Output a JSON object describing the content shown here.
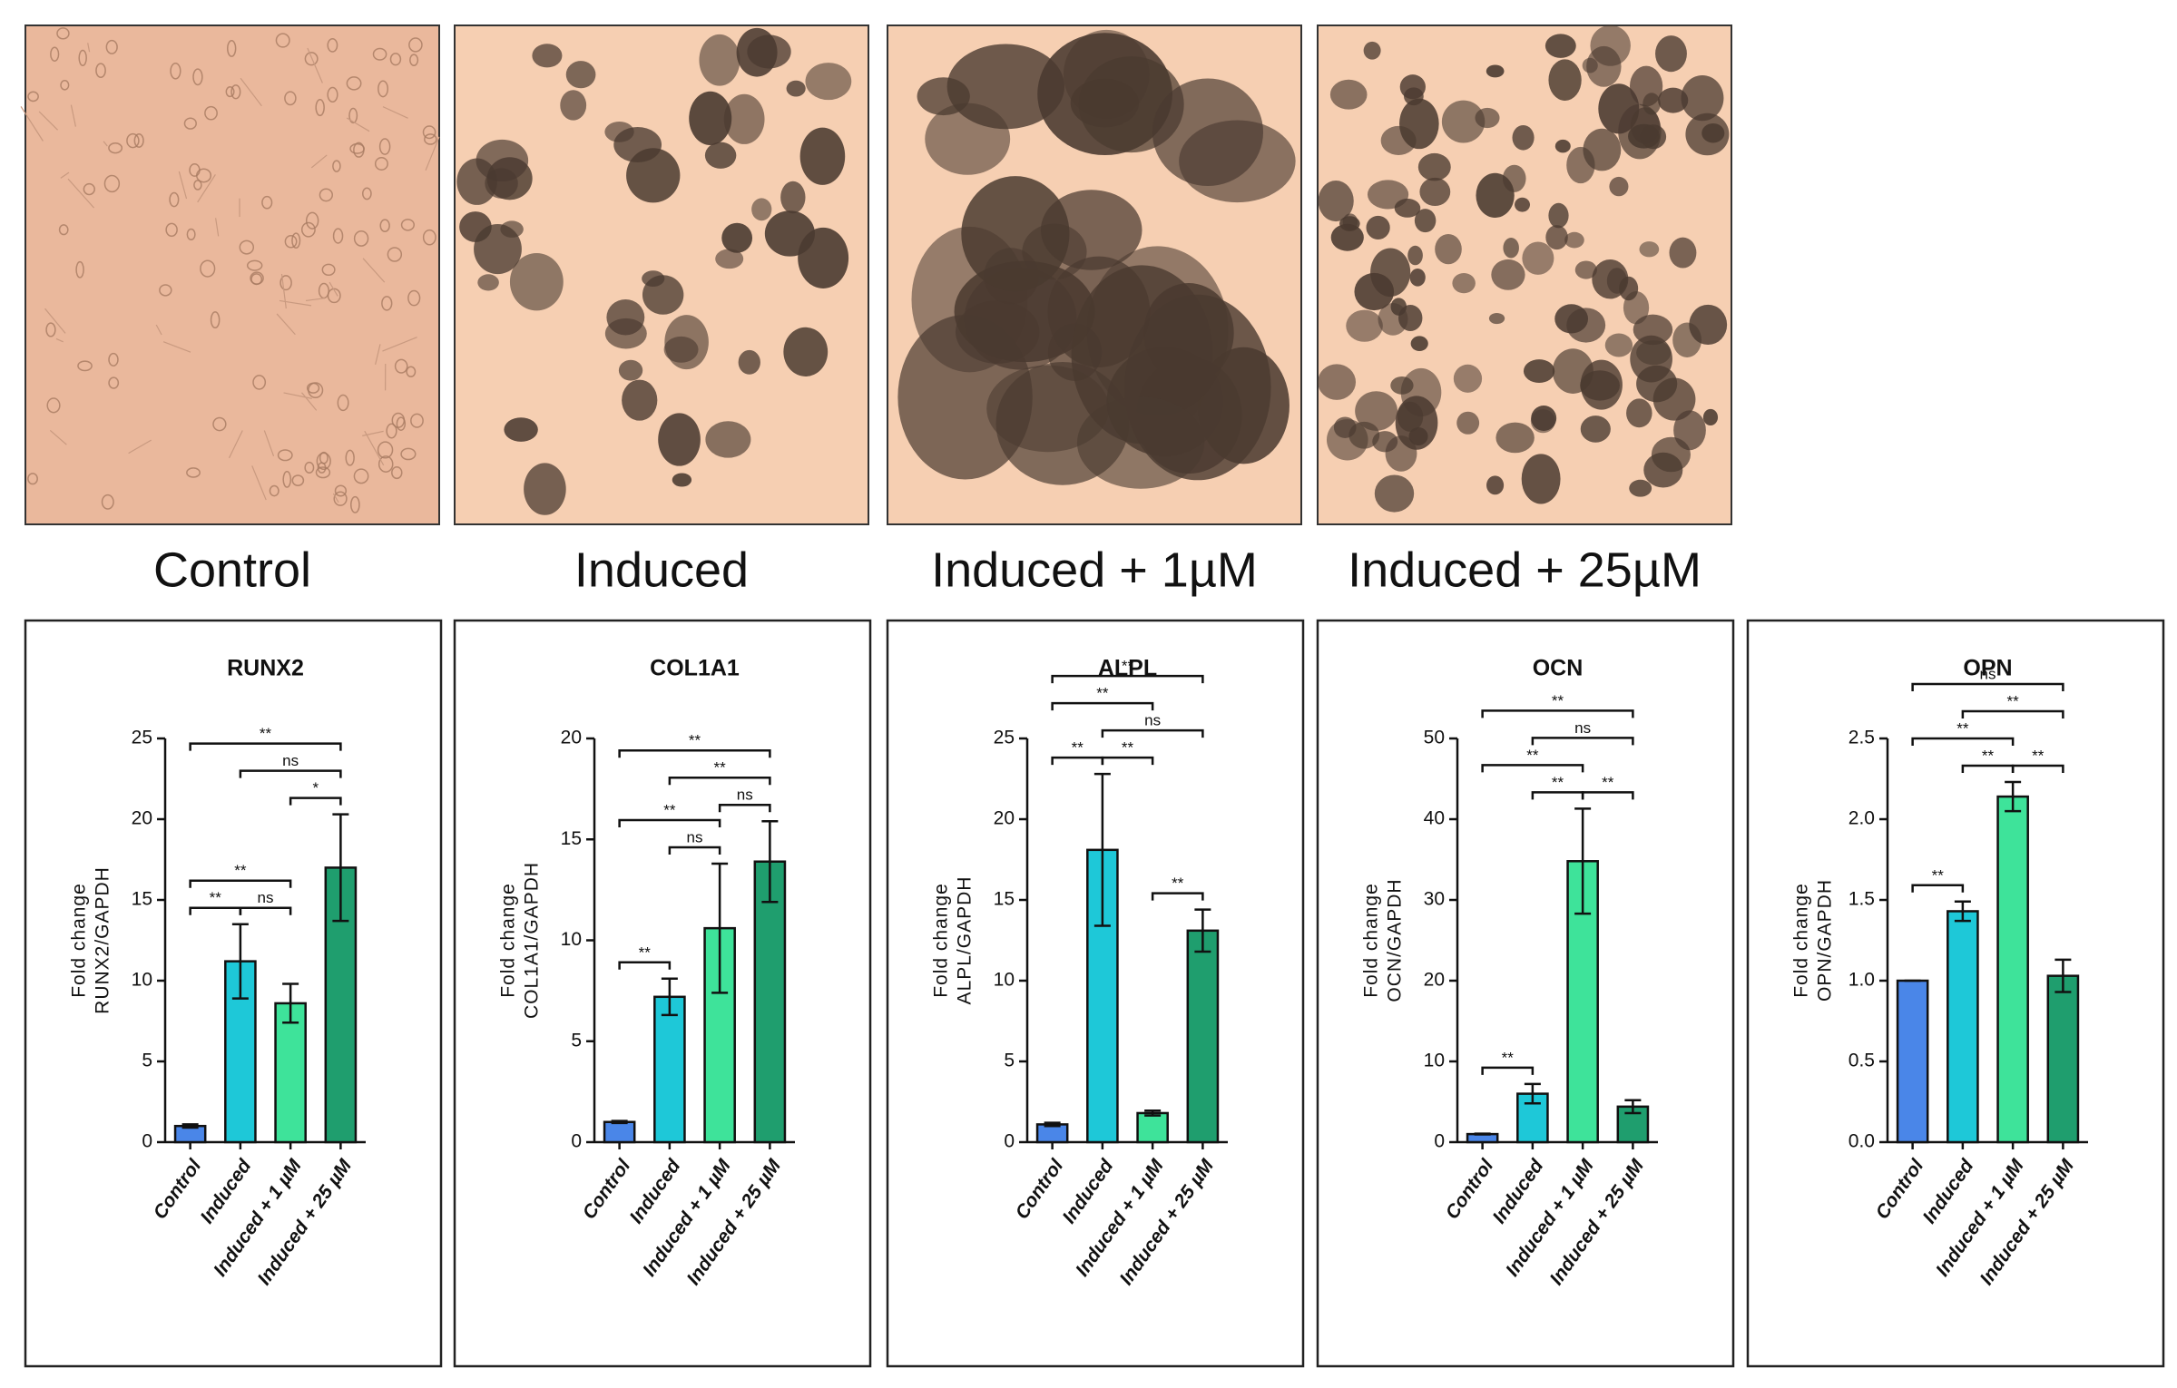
{
  "panels": [
    "Control",
    "Induced",
    "Induced + 1µM",
    "Induced + 25µM"
  ],
  "chart_data": [
    {
      "type": "bar",
      "title": "RUNX2",
      "ylabel": [
        "Fold change",
        "RUNX2/GAPDH"
      ],
      "categories": [
        "Control",
        "Induced",
        "Induced + 1 µM",
        "Induced + 25 µM"
      ],
      "colors": [
        "#4a86e8",
        "#1ec8d8",
        "#3ee39a",
        "#1f9e6e"
      ],
      "values": [
        1,
        11.2,
        8.6,
        17.0
      ],
      "errors": [
        0.1,
        2.3,
        1.2,
        3.3
      ],
      "ylim": [
        0,
        25
      ],
      "yticks": [
        0,
        5,
        10,
        15,
        20,
        25
      ],
      "brackets": [
        {
          "from": 0,
          "to": 1,
          "label": "**"
        },
        {
          "from": 1,
          "to": 2,
          "label": "ns"
        },
        {
          "from": 0,
          "to": 2,
          "label": "**"
        },
        {
          "from": 2,
          "to": 3,
          "label": "*"
        },
        {
          "from": 1,
          "to": 3,
          "label": "ns"
        },
        {
          "from": 0,
          "to": 3,
          "label": "**"
        }
      ]
    },
    {
      "type": "bar",
      "title": "COL1A1",
      "ylabel": [
        "Fold change",
        "COL1A1/GAPDH"
      ],
      "categories": [
        "Control",
        "Induced",
        "Induced + 1 µM",
        "Induced + 25 µM"
      ],
      "colors": [
        "#4a86e8",
        "#1ec8d8",
        "#3ee39a",
        "#1f9e6e"
      ],
      "values": [
        1,
        7.2,
        10.6,
        13.9
      ],
      "errors": [
        0.05,
        0.9,
        3.2,
        2.0
      ],
      "ylim": [
        0,
        20
      ],
      "yticks": [
        0,
        5,
        10,
        15,
        20
      ],
      "brackets": [
        {
          "from": 0,
          "to": 1,
          "label": "**"
        },
        {
          "from": 1,
          "to": 2,
          "label": "ns"
        },
        {
          "from": 0,
          "to": 2,
          "label": "**"
        },
        {
          "from": 2,
          "to": 3,
          "label": "ns"
        },
        {
          "from": 1,
          "to": 3,
          "label": "**"
        },
        {
          "from": 0,
          "to": 3,
          "label": "**"
        }
      ]
    },
    {
      "type": "bar",
      "title": "ALPL",
      "ylabel": [
        "Fold change",
        "ALPL/GAPDH"
      ],
      "categories": [
        "Control",
        "Induced",
        "Induced + 1 µM",
        "Induced + 25 µM"
      ],
      "colors": [
        "#4a86e8",
        "#1ec8d8",
        "#3ee39a",
        "#1f9e6e"
      ],
      "values": [
        1.1,
        18.1,
        1.8,
        13.1
      ],
      "errors": [
        0.1,
        4.7,
        0.15,
        1.3
      ],
      "ylim": [
        0,
        25
      ],
      "yticks": [
        0,
        5,
        10,
        15,
        20,
        25
      ],
      "brackets": [
        {
          "from": 0,
          "to": 1,
          "label": "**"
        },
        {
          "from": 1,
          "to": 2,
          "label": "**"
        },
        {
          "from": 2,
          "to": 3,
          "label": "**"
        },
        {
          "from": 1,
          "to": 3,
          "label": "ns"
        },
        {
          "from": 0,
          "to": 2,
          "label": "**"
        },
        {
          "from": 0,
          "to": 3,
          "label": "**"
        }
      ]
    },
    {
      "type": "bar",
      "title": "OCN",
      "ylabel": [
        "Fold change",
        "OCN/GAPDH"
      ],
      "categories": [
        "Control",
        "Induced",
        "Induced + 1 µM",
        "Induced + 25 µM"
      ],
      "colors": [
        "#4a86e8",
        "#1ec8d8",
        "#3ee39a",
        "#1f9e6e"
      ],
      "values": [
        1,
        6,
        34.8,
        4.4
      ],
      "errors": [
        0.05,
        1.2,
        6.5,
        0.8
      ],
      "ylim": [
        0,
        50
      ],
      "yticks": [
        0,
        10,
        20,
        30,
        40,
        50
      ],
      "brackets": [
        {
          "from": 0,
          "to": 1,
          "label": "**"
        },
        {
          "from": 1,
          "to": 2,
          "label": "**"
        },
        {
          "from": 2,
          "to": 3,
          "label": "**"
        },
        {
          "from": 0,
          "to": 2,
          "label": "**"
        },
        {
          "from": 1,
          "to": 3,
          "label": "ns"
        },
        {
          "from": 0,
          "to": 3,
          "label": "**"
        }
      ]
    },
    {
      "type": "bar",
      "title": "OPN",
      "ylabel": [
        "Fold change",
        "OPN/GAPDH"
      ],
      "categories": [
        "Control",
        "Induced",
        "Induced + 1 µM",
        "Induced + 25 µM"
      ],
      "colors": [
        "#4a86e8",
        "#1ec8d8",
        "#3ee39a",
        "#1f9e6e"
      ],
      "values": [
        1.0,
        1.43,
        2.14,
        1.03
      ],
      "errors": [
        0,
        0.06,
        0.09,
        0.1
      ],
      "ylim": [
        0,
        2.5
      ],
      "yticks": [
        {
          "value": 0,
          "label": "0.0"
        },
        0.5,
        {
          "value": 1,
          "label": "1.0"
        },
        1.5,
        {
          "value": 2,
          "label": "2.0"
        },
        2.5
      ],
      "brackets": [
        {
          "from": 0,
          "to": 1,
          "label": "**"
        },
        {
          "from": 1,
          "to": 2,
          "label": "**"
        },
        {
          "from": 2,
          "to": 3,
          "label": "**"
        },
        {
          "from": 0,
          "to": 2,
          "label": "**"
        },
        {
          "from": 1,
          "to": 3,
          "label": "**"
        },
        {
          "from": 0,
          "to": 3,
          "label": "ns"
        }
      ]
    }
  ]
}
